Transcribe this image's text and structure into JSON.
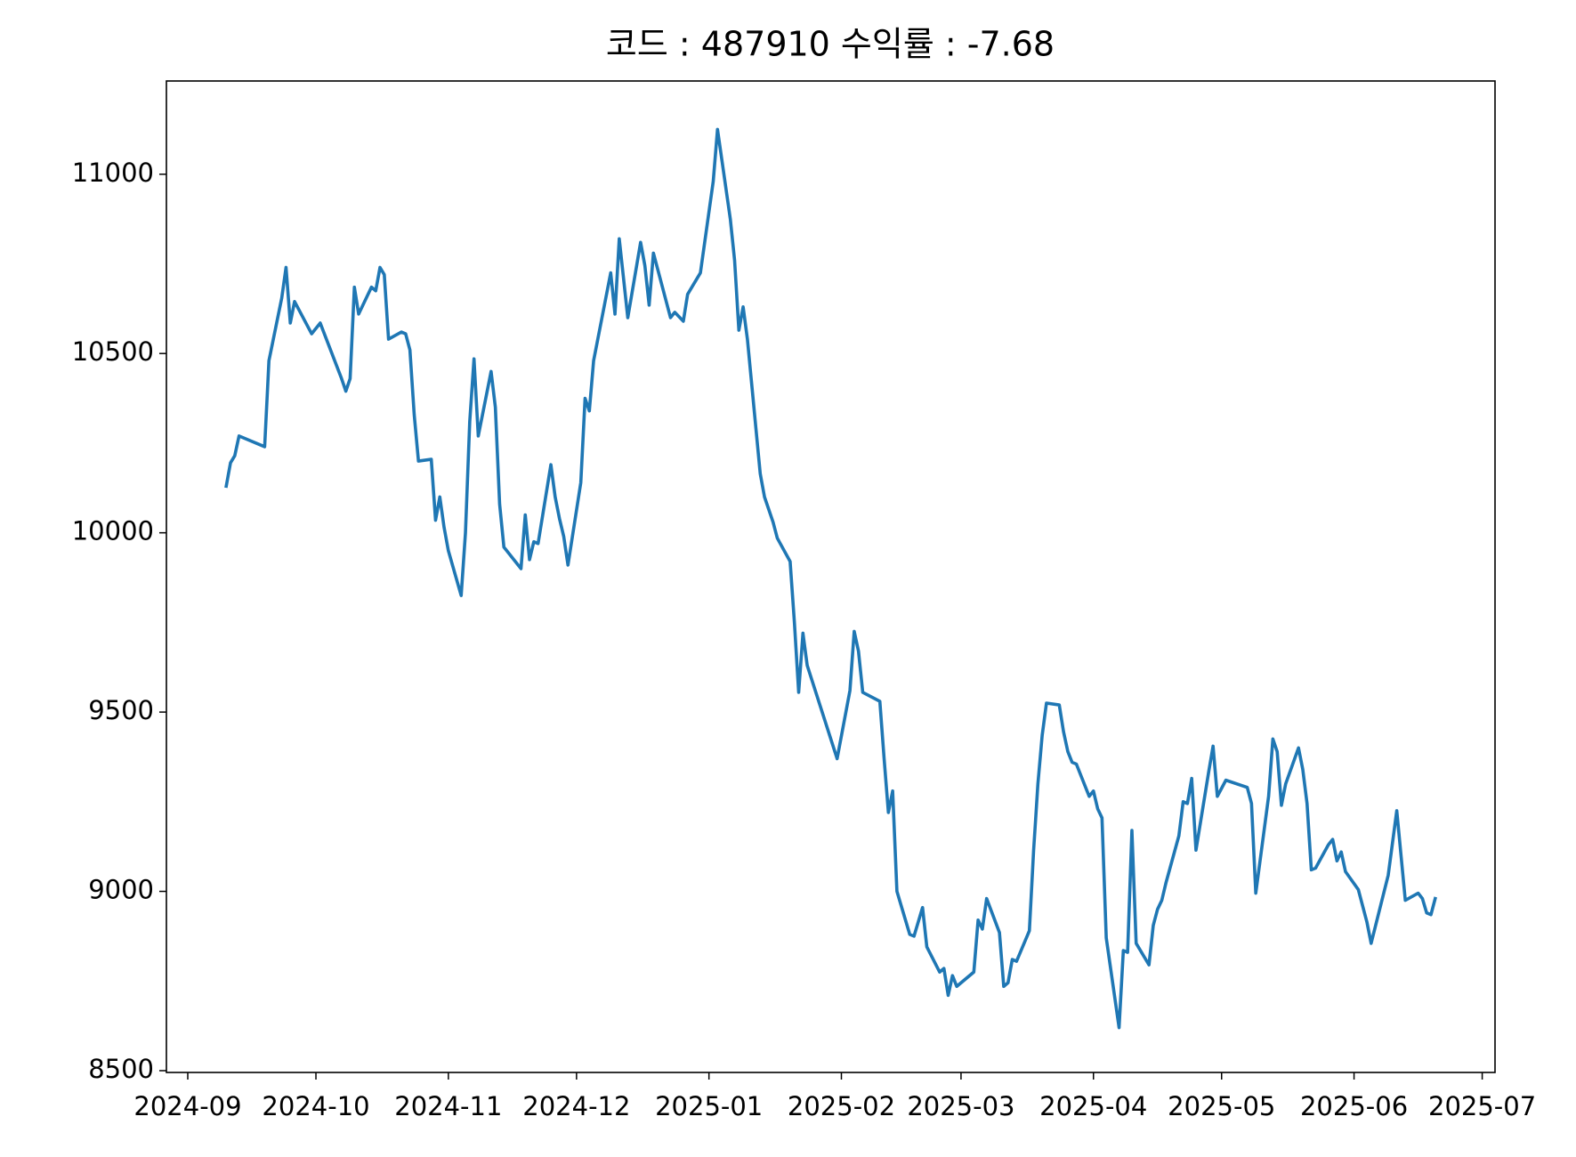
{
  "chart_data": {
    "type": "line",
    "title": "코드 : 487910 수익률 : -7.68",
    "x": [
      "2024-09-10",
      "2024-09-11",
      "2024-09-12",
      "2024-09-13",
      "2024-09-19",
      "2024-09-20",
      "2024-09-23",
      "2024-09-24",
      "2024-09-25",
      "2024-09-26",
      "2024-09-30",
      "2024-10-02",
      "2024-10-07",
      "2024-10-08",
      "2024-10-09",
      "2024-10-10",
      "2024-10-11",
      "2024-10-14",
      "2024-10-15",
      "2024-10-16",
      "2024-10-17",
      "2024-10-18",
      "2024-10-21",
      "2024-10-22",
      "2024-10-23",
      "2024-10-24",
      "2024-10-25",
      "2024-10-28",
      "2024-10-29",
      "2024-10-30",
      "2024-10-31",
      "2024-11-01",
      "2024-11-04",
      "2024-11-05",
      "2024-11-06",
      "2024-11-07",
      "2024-11-08",
      "2024-11-11",
      "2024-11-12",
      "2024-11-13",
      "2024-11-14",
      "2024-11-18",
      "2024-11-19",
      "2024-11-20",
      "2024-11-21",
      "2024-11-22",
      "2024-11-25",
      "2024-11-26",
      "2024-11-27",
      "2024-11-28",
      "2024-11-29",
      "2024-12-02",
      "2024-12-03",
      "2024-12-04",
      "2024-12-05",
      "2024-12-09",
      "2024-12-10",
      "2024-12-11",
      "2024-12-13",
      "2024-12-16",
      "2024-12-17",
      "2024-12-18",
      "2024-12-19",
      "2024-12-23",
      "2024-12-24",
      "2024-12-26",
      "2024-12-27",
      "2024-12-30",
      "2025-01-02",
      "2025-01-03",
      "2025-01-06",
      "2025-01-07",
      "2025-01-08",
      "2025-01-09",
      "2025-01-10",
      "2025-01-13",
      "2025-01-14",
      "2025-01-16",
      "2025-01-17",
      "2025-01-20",
      "2025-01-21",
      "2025-01-22",
      "2025-01-23",
      "2025-01-24",
      "2025-01-31",
      "2025-02-03",
      "2025-02-04",
      "2025-02-05",
      "2025-02-06",
      "2025-02-10",
      "2025-02-11",
      "2025-02-12",
      "2025-02-13",
      "2025-02-14",
      "2025-02-17",
      "2025-02-18",
      "2025-02-20",
      "2025-02-21",
      "2025-02-24",
      "2025-02-25",
      "2025-02-26",
      "2025-02-27",
      "2025-02-28",
      "2025-03-04",
      "2025-03-05",
      "2025-03-06",
      "2025-03-07",
      "2025-03-10",
      "2025-03-11",
      "2025-03-12",
      "2025-03-13",
      "2025-03-14",
      "2025-03-17",
      "2025-03-18",
      "2025-03-19",
      "2025-03-20",
      "2025-03-21",
      "2025-03-24",
      "2025-03-25",
      "2025-03-26",
      "2025-03-27",
      "2025-03-28",
      "2025-03-31",
      "2025-04-01",
      "2025-04-02",
      "2025-04-03",
      "2025-04-04",
      "2025-04-07",
      "2025-04-08",
      "2025-04-09",
      "2025-04-10",
      "2025-04-11",
      "2025-04-14",
      "2025-04-15",
      "2025-04-16",
      "2025-04-17",
      "2025-04-18",
      "2025-04-21",
      "2025-04-22",
      "2025-04-23",
      "2025-04-24",
      "2025-04-25",
      "2025-04-28",
      "2025-04-29",
      "2025-04-30",
      "2025-05-02",
      "2025-05-07",
      "2025-05-08",
      "2025-05-09",
      "2025-05-12",
      "2025-05-13",
      "2025-05-14",
      "2025-05-15",
      "2025-05-16",
      "2025-05-19",
      "2025-05-20",
      "2025-05-21",
      "2025-05-22",
      "2025-05-23",
      "2025-05-26",
      "2025-05-27",
      "2025-05-28",
      "2025-05-29",
      "2025-05-30",
      "2025-06-02",
      "2025-06-04",
      "2025-06-05",
      "2025-06-09",
      "2025-06-10",
      "2025-06-11",
      "2025-06-12",
      "2025-06-13",
      "2025-06-16",
      "2025-06-17",
      "2025-06-18",
      "2025-06-19",
      "2025-06-20"
    ],
    "series": [
      {
        "color": "#1f77b4",
        "values": [
          10130,
          10195,
          10215,
          10270,
          10240,
          10480,
          10655,
          10740,
          10585,
          10645,
          10555,
          10585,
          10430,
          10395,
          10430,
          10685,
          10610,
          10685,
          10675,
          10740,
          10720,
          10540,
          10560,
          10555,
          10510,
          10330,
          10200,
          10205,
          10035,
          10100,
          10015,
          9950,
          9825,
          10000,
          10310,
          10485,
          10270,
          10450,
          10350,
          10080,
          9960,
          9900,
          10050,
          9925,
          9975,
          9970,
          10190,
          10100,
          10040,
          9990,
          9910,
          10140,
          10375,
          10340,
          10480,
          10725,
          10610,
          10820,
          10600,
          10810,
          10745,
          10635,
          10780,
          10600,
          10615,
          10590,
          10665,
          10725,
          10980,
          11125,
          10875,
          10760,
          10565,
          10630,
          10540,
          10165,
          10100,
          10030,
          9985,
          9920,
          9750,
          9555,
          9720,
          9630,
          9370,
          9560,
          9725,
          9670,
          9555,
          9530,
          9370,
          9220,
          9280,
          9000,
          8880,
          8875,
          8955,
          8845,
          8775,
          8785,
          8710,
          8765,
          8735,
          8775,
          8920,
          8895,
          8980,
          8885,
          8735,
          8745,
          8810,
          8805,
          8890,
          9115,
          9300,
          9435,
          9525,
          9520,
          9445,
          9390,
          9360,
          9355,
          9265,
          9280,
          9230,
          9205,
          8870,
          8620,
          8835,
          8830,
          9170,
          8855,
          8795,
          8905,
          8950,
          8975,
          9025,
          9155,
          9250,
          9245,
          9315,
          9115,
          9335,
          9405,
          9265,
          9310,
          9290,
          9245,
          8995,
          9265,
          9425,
          9390,
          9240,
          9300,
          9400,
          9340,
          9245,
          9060,
          9065,
          9130,
          9145,
          9085,
          9110,
          9055,
          9005,
          8915,
          8855,
          9045,
          9135,
          9225,
          9100,
          8975,
          8995,
          8980,
          8940,
          8935,
          8980
        ]
      }
    ],
    "xlim": [
      "2024-08-27",
      "2025-07-04"
    ],
    "xticks": [
      {
        "value": "2024-09-01",
        "label": "2024-09"
      },
      {
        "value": "2024-10-01",
        "label": "2024-10"
      },
      {
        "value": "2024-11-01",
        "label": "2024-11"
      },
      {
        "value": "2024-12-01",
        "label": "2024-12"
      },
      {
        "value": "2025-01-01",
        "label": "2025-01"
      },
      {
        "value": "2025-02-01",
        "label": "2025-02"
      },
      {
        "value": "2025-03-01",
        "label": "2025-03"
      },
      {
        "value": "2025-04-01",
        "label": "2025-04"
      },
      {
        "value": "2025-05-01",
        "label": "2025-05"
      },
      {
        "value": "2025-06-01",
        "label": "2025-06"
      },
      {
        "value": "2025-07-01",
        "label": "2025-07"
      }
    ],
    "ylim": [
      8495,
      11260
    ],
    "yticks": [
      8500,
      9000,
      9500,
      10000,
      10500,
      11000
    ],
    "grid": false
  }
}
